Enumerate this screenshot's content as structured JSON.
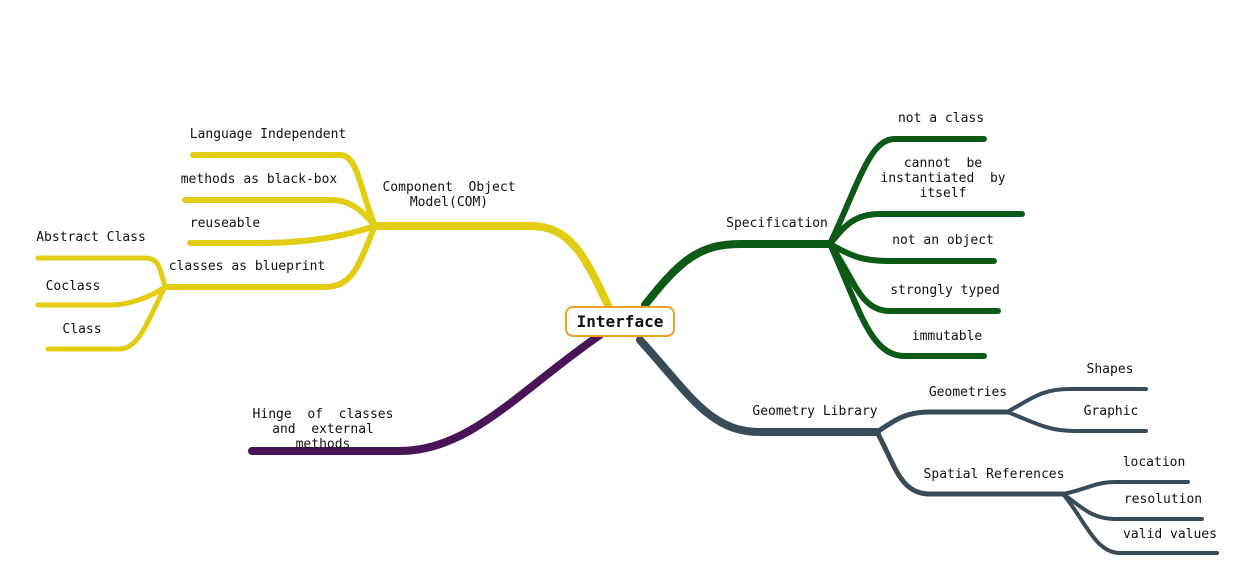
{
  "colors": {
    "yellow": "#e3cd12",
    "green": "#0d5a17",
    "slate": "#394b56",
    "purple": "#4a1556",
    "root_border": "#f0a020"
  },
  "root": {
    "label": "Interface"
  },
  "branches": {
    "com": {
      "label": "Component  Object\nModel(COM)",
      "children": {
        "language_independent": "Language Independent",
        "methods_black_box": "methods as black-box",
        "reuseable": "reuseable",
        "classes_blueprint": {
          "label": "classes as blueprint",
          "children": {
            "abstract_class": "Abstract Class",
            "coclass": "Coclass",
            "class": "Class"
          }
        }
      }
    },
    "hinge": {
      "label": "Hinge  of  classes\nand  external\nmethods"
    },
    "specification": {
      "label": "Specification",
      "children": {
        "not_a_class": "not a class",
        "cannot_instantiate": "cannot  be\ninstantiated  by\nitself",
        "not_an_object": "not an object",
        "strongly_typed": "strongly typed",
        "immutable": "immutable"
      }
    },
    "geometry_library": {
      "label": "Geometry Library",
      "children": {
        "geometries": {
          "label": "Geometries",
          "children": {
            "shapes": "Shapes",
            "graphic": "Graphic"
          }
        },
        "spatial_references": {
          "label": "Spatial References",
          "children": {
            "location": "location",
            "resolution": "resolution",
            "valid_values": "valid values"
          }
        }
      }
    }
  }
}
